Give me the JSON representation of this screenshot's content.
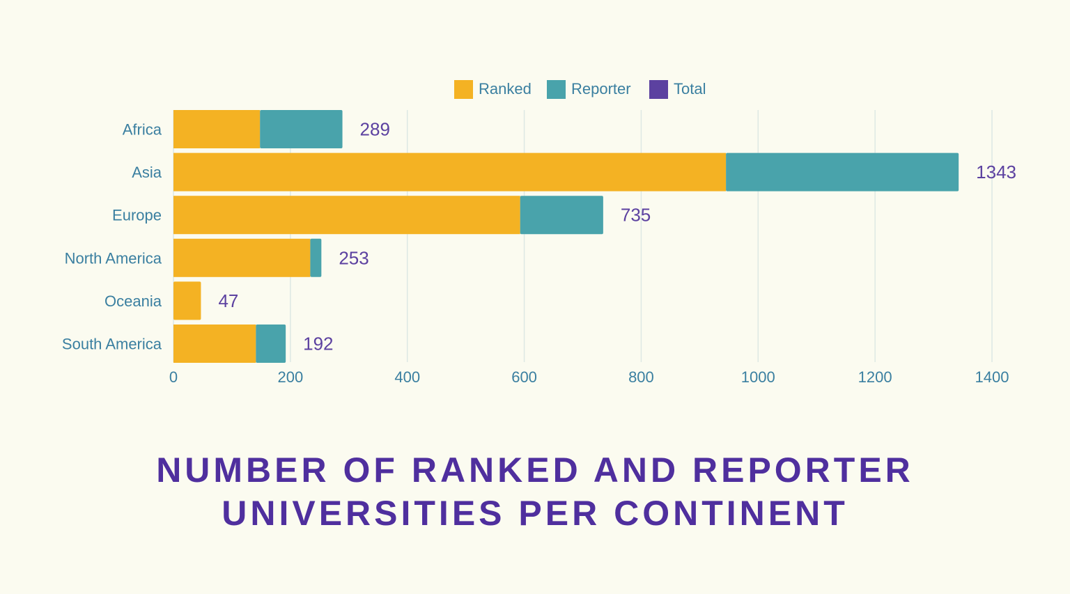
{
  "chart_data": {
    "type": "bar",
    "orientation": "horizontal",
    "stacked": true,
    "title_lines": [
      "NUMBER OF RANKED AND REPORTER",
      "UNIVERSITIES PER CONTINENT"
    ],
    "categories": [
      "Africa",
      "Asia",
      "Europe",
      "North America",
      "Oceania",
      "South America"
    ],
    "series": [
      {
        "name": "Ranked",
        "color": "#f4b223",
        "values": [
          148,
          945,
          593,
          234,
          47,
          141
        ]
      },
      {
        "name": "Reporter",
        "color": "#49a3ab",
        "values": [
          141,
          398,
          142,
          19,
          0,
          51
        ]
      },
      {
        "name": "Total",
        "color": "#5c41a0",
        "values": [
          289,
          1343,
          735,
          253,
          47,
          192
        ]
      }
    ],
    "total_labels": [
      "289",
      "1343",
      "735",
      "253",
      "47",
      "192"
    ],
    "xlim": [
      0,
      1400
    ],
    "xticks": [
      "0",
      "200",
      "400",
      "600",
      "800",
      "1000",
      "1200",
      "1400"
    ],
    "grid": true,
    "legend": "top-center",
    "colors": {
      "background": "#fbfbf0",
      "axis_text": "#3a7fa0",
      "title": "#4f2f9e",
      "grid": "#dde8e4"
    }
  }
}
